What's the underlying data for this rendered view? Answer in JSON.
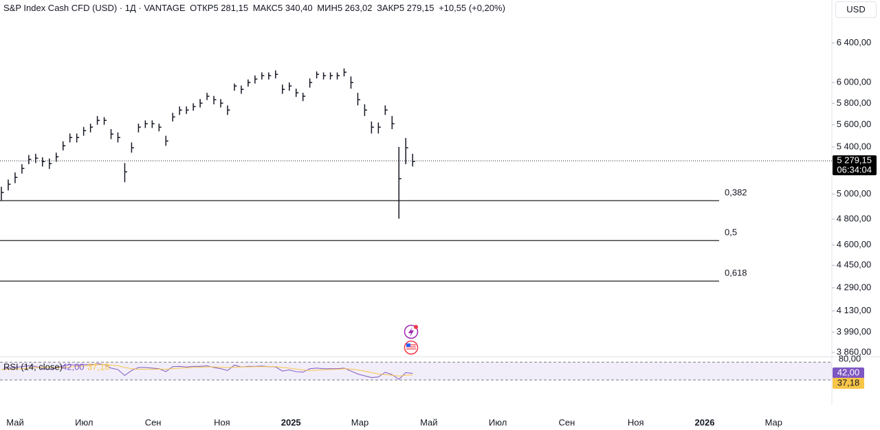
{
  "header": {
    "symbol": "S&P Index Cash CFD (USD) · 1Д · VANTAGE",
    "open_label": "ОТКР",
    "open": "5 281,15",
    "high_label": "МАКС",
    "high": "5 340,40",
    "low_label": "МИН",
    "low": "5 263,02",
    "close_label": "ЗАКР",
    "close": "5 279,15",
    "change": "+10,55 (+0,20%)",
    "currency": "USD"
  },
  "chart_data": [
    {
      "type": "ohlc",
      "color": "#131722",
      "scale": "log",
      "ylim": [
        3834,
        6714
      ],
      "yticks": [
        {
          "value": 6400,
          "label": "6 400,00"
        },
        {
          "value": 6000,
          "label": "6 000,00"
        },
        {
          "value": 5800,
          "label": "5 800,00"
        },
        {
          "value": 5600,
          "label": "5 600,00"
        },
        {
          "value": 5400,
          "label": "5 400,00"
        },
        {
          "value": 5000,
          "label": "5 000,00"
        },
        {
          "value": 4800,
          "label": "4 800,00"
        },
        {
          "value": 4600,
          "label": "4 600,00"
        },
        {
          "value": 4450,
          "label": "4 450,00"
        },
        {
          "value": 4290,
          "label": "4 290,00"
        },
        {
          "value": 4130,
          "label": "4 130,00"
        },
        {
          "value": 3990,
          "label": "3 990,00"
        },
        {
          "value": 3860,
          "label": "3 860,00"
        }
      ],
      "x_labels": [
        "Май",
        "Июл",
        "Сен",
        "Ноя",
        "2025",
        "Мар",
        "Май",
        "Июл",
        "Сен",
        "Ноя",
        "2026",
        "Мар"
      ],
      "high": [
        5060,
        5120,
        5180,
        5250,
        5330,
        5340,
        5310,
        5300,
        5350,
        5450,
        5520,
        5520,
        5580,
        5610,
        5680,
        5670,
        5560,
        5530,
        5260,
        5440,
        5610,
        5640,
        5640,
        5610,
        5500,
        5710,
        5770,
        5770,
        5800,
        5840,
        5900,
        5870,
        5840,
        5780,
        5990,
        5970,
        6030,
        6070,
        6100,
        6100,
        6120,
        5980,
        6000,
        5940,
        5900,
        6040,
        6110,
        6100,
        6100,
        6100,
        6140,
        6060,
        5900,
        5790,
        5630,
        5620,
        5780,
        5680,
        5400,
        5480,
        5340
      ],
      "low": [
        4950,
        5030,
        5090,
        5170,
        5250,
        5260,
        5230,
        5210,
        5270,
        5370,
        5440,
        5440,
        5500,
        5530,
        5600,
        5600,
        5470,
        5440,
        5098,
        5350,
        5530,
        5570,
        5570,
        5540,
        5410,
        5630,
        5690,
        5700,
        5730,
        5760,
        5830,
        5790,
        5760,
        5690,
        5920,
        5890,
        5960,
        5990,
        6030,
        6030,
        6040,
        5890,
        5920,
        5860,
        5820,
        5950,
        6040,
        6030,
        6030,
        6030,
        6060,
        5940,
        5780,
        5680,
        5520,
        5520,
        5690,
        5560,
        4803,
        5250,
        5230
      ],
      "close": [
        5013,
        5081,
        5138,
        5214,
        5291,
        5302,
        5273,
        5255,
        5314,
        5411,
        5484,
        5484,
        5546,
        5578,
        5640,
        5640,
        5515,
        5484,
        5185,
        5393,
        5578,
        5609,
        5609,
        5578,
        5453,
        5672,
        5736,
        5736,
        5769,
        5801,
        5867,
        5834,
        5801,
        5736,
        5966,
        5933,
        6000,
        6034,
        6068,
        6068,
        6081,
        5933,
        5966,
        5900,
        5867,
        6000,
        6081,
        6068,
        6068,
        6068,
        6102,
        6000,
        5834,
        5736,
        5578,
        5578,
        5736,
        5609,
        5127,
        5393,
        5273
      ],
      "last_price": {
        "value": 5279.15,
        "label": "5 279,15"
      },
      "countdown": "06:34:04",
      "fib_levels": [
        {
          "label": "0,382",
          "price": 4946
        },
        {
          "label": "0,5",
          "price": 4634
        },
        {
          "label": "0,618",
          "price": 4337
        }
      ]
    },
    {
      "type": "rsi",
      "title": "RSI (14, close)",
      "ylim": [
        -10,
        97
      ],
      "yticks": [
        {
          "value": 80,
          "label": "80,00"
        }
      ],
      "band": [
        20,
        80
      ],
      "series": [
        {
          "name": "RSI",
          "color": "#7e57c2",
          "last_label": "42,00",
          "values": [
            55,
            60,
            62,
            65,
            68,
            66,
            58,
            56,
            60,
            68,
            72,
            70,
            72,
            72,
            75,
            72,
            60,
            55,
            35,
            52,
            62,
            62,
            60,
            58,
            48,
            65,
            66,
            64,
            66,
            66,
            68,
            62,
            58,
            52,
            70,
            64,
            66,
            66,
            67,
            65,
            64,
            50,
            54,
            48,
            46,
            58,
            60,
            58,
            58,
            58,
            60,
            50,
            40,
            34,
            28,
            30,
            46,
            38,
            22,
            45,
            42
          ]
        },
        {
          "name": "MA",
          "color": "#f7c548",
          "last_label": "37,18",
          "values": [
            55,
            56,
            57,
            58,
            60,
            62,
            62,
            62,
            61,
            62,
            64,
            66,
            67,
            69,
            71,
            72,
            70,
            68,
            62,
            58,
            56,
            56,
            56,
            57,
            56,
            58,
            60,
            61,
            62,
            63,
            64,
            64,
            63,
            62,
            63,
            64,
            64,
            65,
            65,
            65,
            65,
            62,
            60,
            57,
            54,
            52,
            53,
            54,
            55,
            56,
            58,
            57,
            54,
            50,
            45,
            40,
            38,
            36,
            33,
            36,
            37.18
          ]
        }
      ]
    }
  ]
}
